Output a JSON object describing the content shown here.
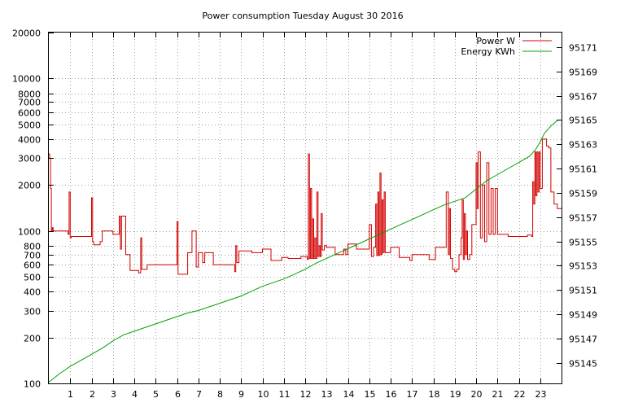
{
  "chart_data": {
    "type": "line",
    "title": "Power consumption Tuesday August 30 2016",
    "xlabel": "",
    "ylabel": "",
    "y2label": "",
    "xlim": [
      0,
      24
    ],
    "ylim": [
      100,
      20000
    ],
    "yscale": "log",
    "y2lim": [
      95143.3,
      95172.2
    ],
    "x_ticks": [
      1,
      2,
      3,
      4,
      5,
      6,
      7,
      8,
      9,
      10,
      11,
      12,
      13,
      14,
      15,
      16,
      17,
      18,
      19,
      20,
      21,
      22,
      23
    ],
    "y_ticks": [
      {
        "value": 100,
        "label": "100"
      },
      {
        "value": 200,
        "label": "200"
      },
      {
        "value": 300,
        "label": "300"
      },
      {
        "value": 400,
        "label": "400"
      },
      {
        "value": 500,
        "label": "500"
      },
      {
        "value": 600,
        "label": "600"
      },
      {
        "value": 700,
        "label": "700"
      },
      {
        "value": 800,
        "label": "800"
      },
      {
        "value": 1000,
        "label": "1000"
      },
      {
        "value": 2000,
        "label": "2000"
      },
      {
        "value": 3000,
        "label": "3000"
      },
      {
        "value": 4000,
        "label": "4000"
      },
      {
        "value": 5000,
        "label": "5000"
      },
      {
        "value": 6000,
        "label": "6000"
      },
      {
        "value": 7000,
        "label": "7000"
      },
      {
        "value": 8000,
        "label": "8000"
      },
      {
        "value": 10000,
        "label": "10000"
      },
      {
        "value": 20000,
        "label": "20000"
      }
    ],
    "y2_ticks": [
      95145,
      95147,
      95149,
      95151,
      95153,
      95155,
      95157,
      95159,
      95161,
      95163,
      95165,
      95167,
      95169,
      95171
    ],
    "grid": true,
    "legend_position": "top-right",
    "series": [
      {
        "name": "Power W",
        "axis": "left",
        "color": "#d40000",
        "step": true,
        "x": [
          0.0,
          0.04,
          0.08,
          0.12,
          0.16,
          0.2,
          0.6,
          0.9,
          0.95,
          1.0,
          1.05,
          1.1,
          1.5,
          1.95,
          2.0,
          2.05,
          2.1,
          2.4,
          2.5,
          2.8,
          3.0,
          3.1,
          3.3,
          3.35,
          3.4,
          3.6,
          3.8,
          3.9,
          4.2,
          4.3,
          4.35,
          4.6,
          5.0,
          5.1,
          5.9,
          6.0,
          6.05,
          6.1,
          6.5,
          6.7,
          6.9,
          7.0,
          7.1,
          7.2,
          7.3,
          7.7,
          8.0,
          8.4,
          8.7,
          8.75,
          8.8,
          8.9,
          9.2,
          9.5,
          10.0,
          10.4,
          10.5,
          10.9,
          11.2,
          11.5,
          11.8,
          12.0,
          12.1,
          12.15,
          12.2,
          12.25,
          12.3,
          12.35,
          12.4,
          12.45,
          12.5,
          12.55,
          12.6,
          12.65,
          12.7,
          12.75,
          12.8,
          12.9,
          13.0,
          13.4,
          13.6,
          13.8,
          13.9,
          14.0,
          14.4,
          14.9,
          15.0,
          15.1,
          15.2,
          15.3,
          15.35,
          15.4,
          15.45,
          15.5,
          15.55,
          15.6,
          15.65,
          15.7,
          15.75,
          15.8,
          16.0,
          16.1,
          16.2,
          16.4,
          16.6,
          16.9,
          17.0,
          17.2,
          17.5,
          17.8,
          18.1,
          18.4,
          18.5,
          18.6,
          18.7,
          18.75,
          18.8,
          18.9,
          19.0,
          19.1,
          19.2,
          19.3,
          19.35,
          19.4,
          19.45,
          19.5,
          19.55,
          19.6,
          19.7,
          19.8,
          20.0,
          20.05,
          20.1,
          20.2,
          20.3,
          20.4,
          20.5,
          20.6,
          20.7,
          20.8,
          20.9,
          21.0,
          21.1,
          21.5,
          21.6,
          22.0,
          22.4,
          22.5,
          22.6,
          22.65,
          22.7,
          22.75,
          22.8,
          22.85,
          22.9,
          22.95,
          23.0,
          23.1,
          23.3,
          23.4,
          23.5,
          23.65,
          23.8,
          24.0
        ],
        "values": [
          3200,
          3000,
          1900,
          1000,
          1050,
          1000,
          1000,
          950,
          1800,
          900,
          920,
          920,
          920,
          920,
          1650,
          850,
          810,
          850,
          1000,
          1000,
          950,
          950,
          1250,
          760,
          1250,
          700,
          550,
          550,
          530,
          900,
          560,
          600,
          600,
          600,
          600,
          1150,
          520,
          520,
          720,
          1000,
          580,
          720,
          720,
          620,
          720,
          600,
          600,
          600,
          540,
          800,
          620,
          740,
          740,
          720,
          760,
          640,
          640,
          670,
          660,
          660,
          680,
          680,
          650,
          3200,
          660,
          1900,
          660,
          1200,
          660,
          900,
          660,
          1800,
          680,
          800,
          680,
          1300,
          750,
          800,
          780,
          700,
          700,
          760,
          700,
          820,
          760,
          760,
          1100,
          680,
          780,
          1500,
          690,
          1800,
          690,
          2400,
          700,
          1600,
          720,
          1800,
          720,
          720,
          780,
          780,
          780,
          670,
          670,
          640,
          700,
          700,
          700,
          650,
          780,
          780,
          780,
          1800,
          700,
          1400,
          660,
          560,
          540,
          560,
          700,
          900,
          1600,
          650,
          1300,
          700,
          1000,
          650,
          700,
          1100,
          2800,
          1400,
          3300,
          900,
          2000,
          850,
          2800,
          950,
          1900,
          950,
          1900,
          950,
          950,
          920,
          920,
          920,
          940,
          940,
          920,
          2100,
          1500,
          3300,
          1700,
          3300,
          1800,
          3300,
          1900,
          4000,
          3600,
          3500,
          1800,
          1500,
          1400,
          1400
        ]
      },
      {
        "name": "Energy KWh",
        "axis": "right",
        "color": "#00a000",
        "step": false,
        "x": [
          0.0,
          0.5,
          1.0,
          1.5,
          2.0,
          2.5,
          3.0,
          3.5,
          4.0,
          4.5,
          5.0,
          5.5,
          6.0,
          6.5,
          7.0,
          7.5,
          8.0,
          8.5,
          9.0,
          9.5,
          10.0,
          10.5,
          11.0,
          11.5,
          12.0,
          12.5,
          13.0,
          13.5,
          14.0,
          14.5,
          15.0,
          15.5,
          16.0,
          16.5,
          17.0,
          17.5,
          18.0,
          18.5,
          19.0,
          19.5,
          20.0,
          20.5,
          21.0,
          21.5,
          22.0,
          22.5,
          22.8,
          23.0,
          23.2,
          23.5,
          23.7,
          23.85
        ],
        "values": [
          95143.4,
          95144.1,
          95144.7,
          95145.2,
          95145.7,
          95146.2,
          95146.8,
          95147.3,
          95147.6,
          95147.9,
          95148.2,
          95148.5,
          95148.8,
          95149.1,
          95149.3,
          95149.6,
          95149.9,
          95150.2,
          95150.5,
          95150.9,
          95151.3,
          95151.6,
          95151.9,
          95152.3,
          95152.7,
          95153.2,
          95153.6,
          95154.0,
          95154.4,
          95154.8,
          95155.2,
          95155.6,
          95156.0,
          95156.4,
          95156.8,
          95157.2,
          95157.6,
          95158.0,
          95158.3,
          95158.6,
          95159.3,
          95160.0,
          95160.5,
          95161.0,
          95161.5,
          95162.0,
          95162.6,
          95163.2,
          95163.9,
          95164.5,
          95164.8,
          95165.0
        ]
      }
    ]
  }
}
